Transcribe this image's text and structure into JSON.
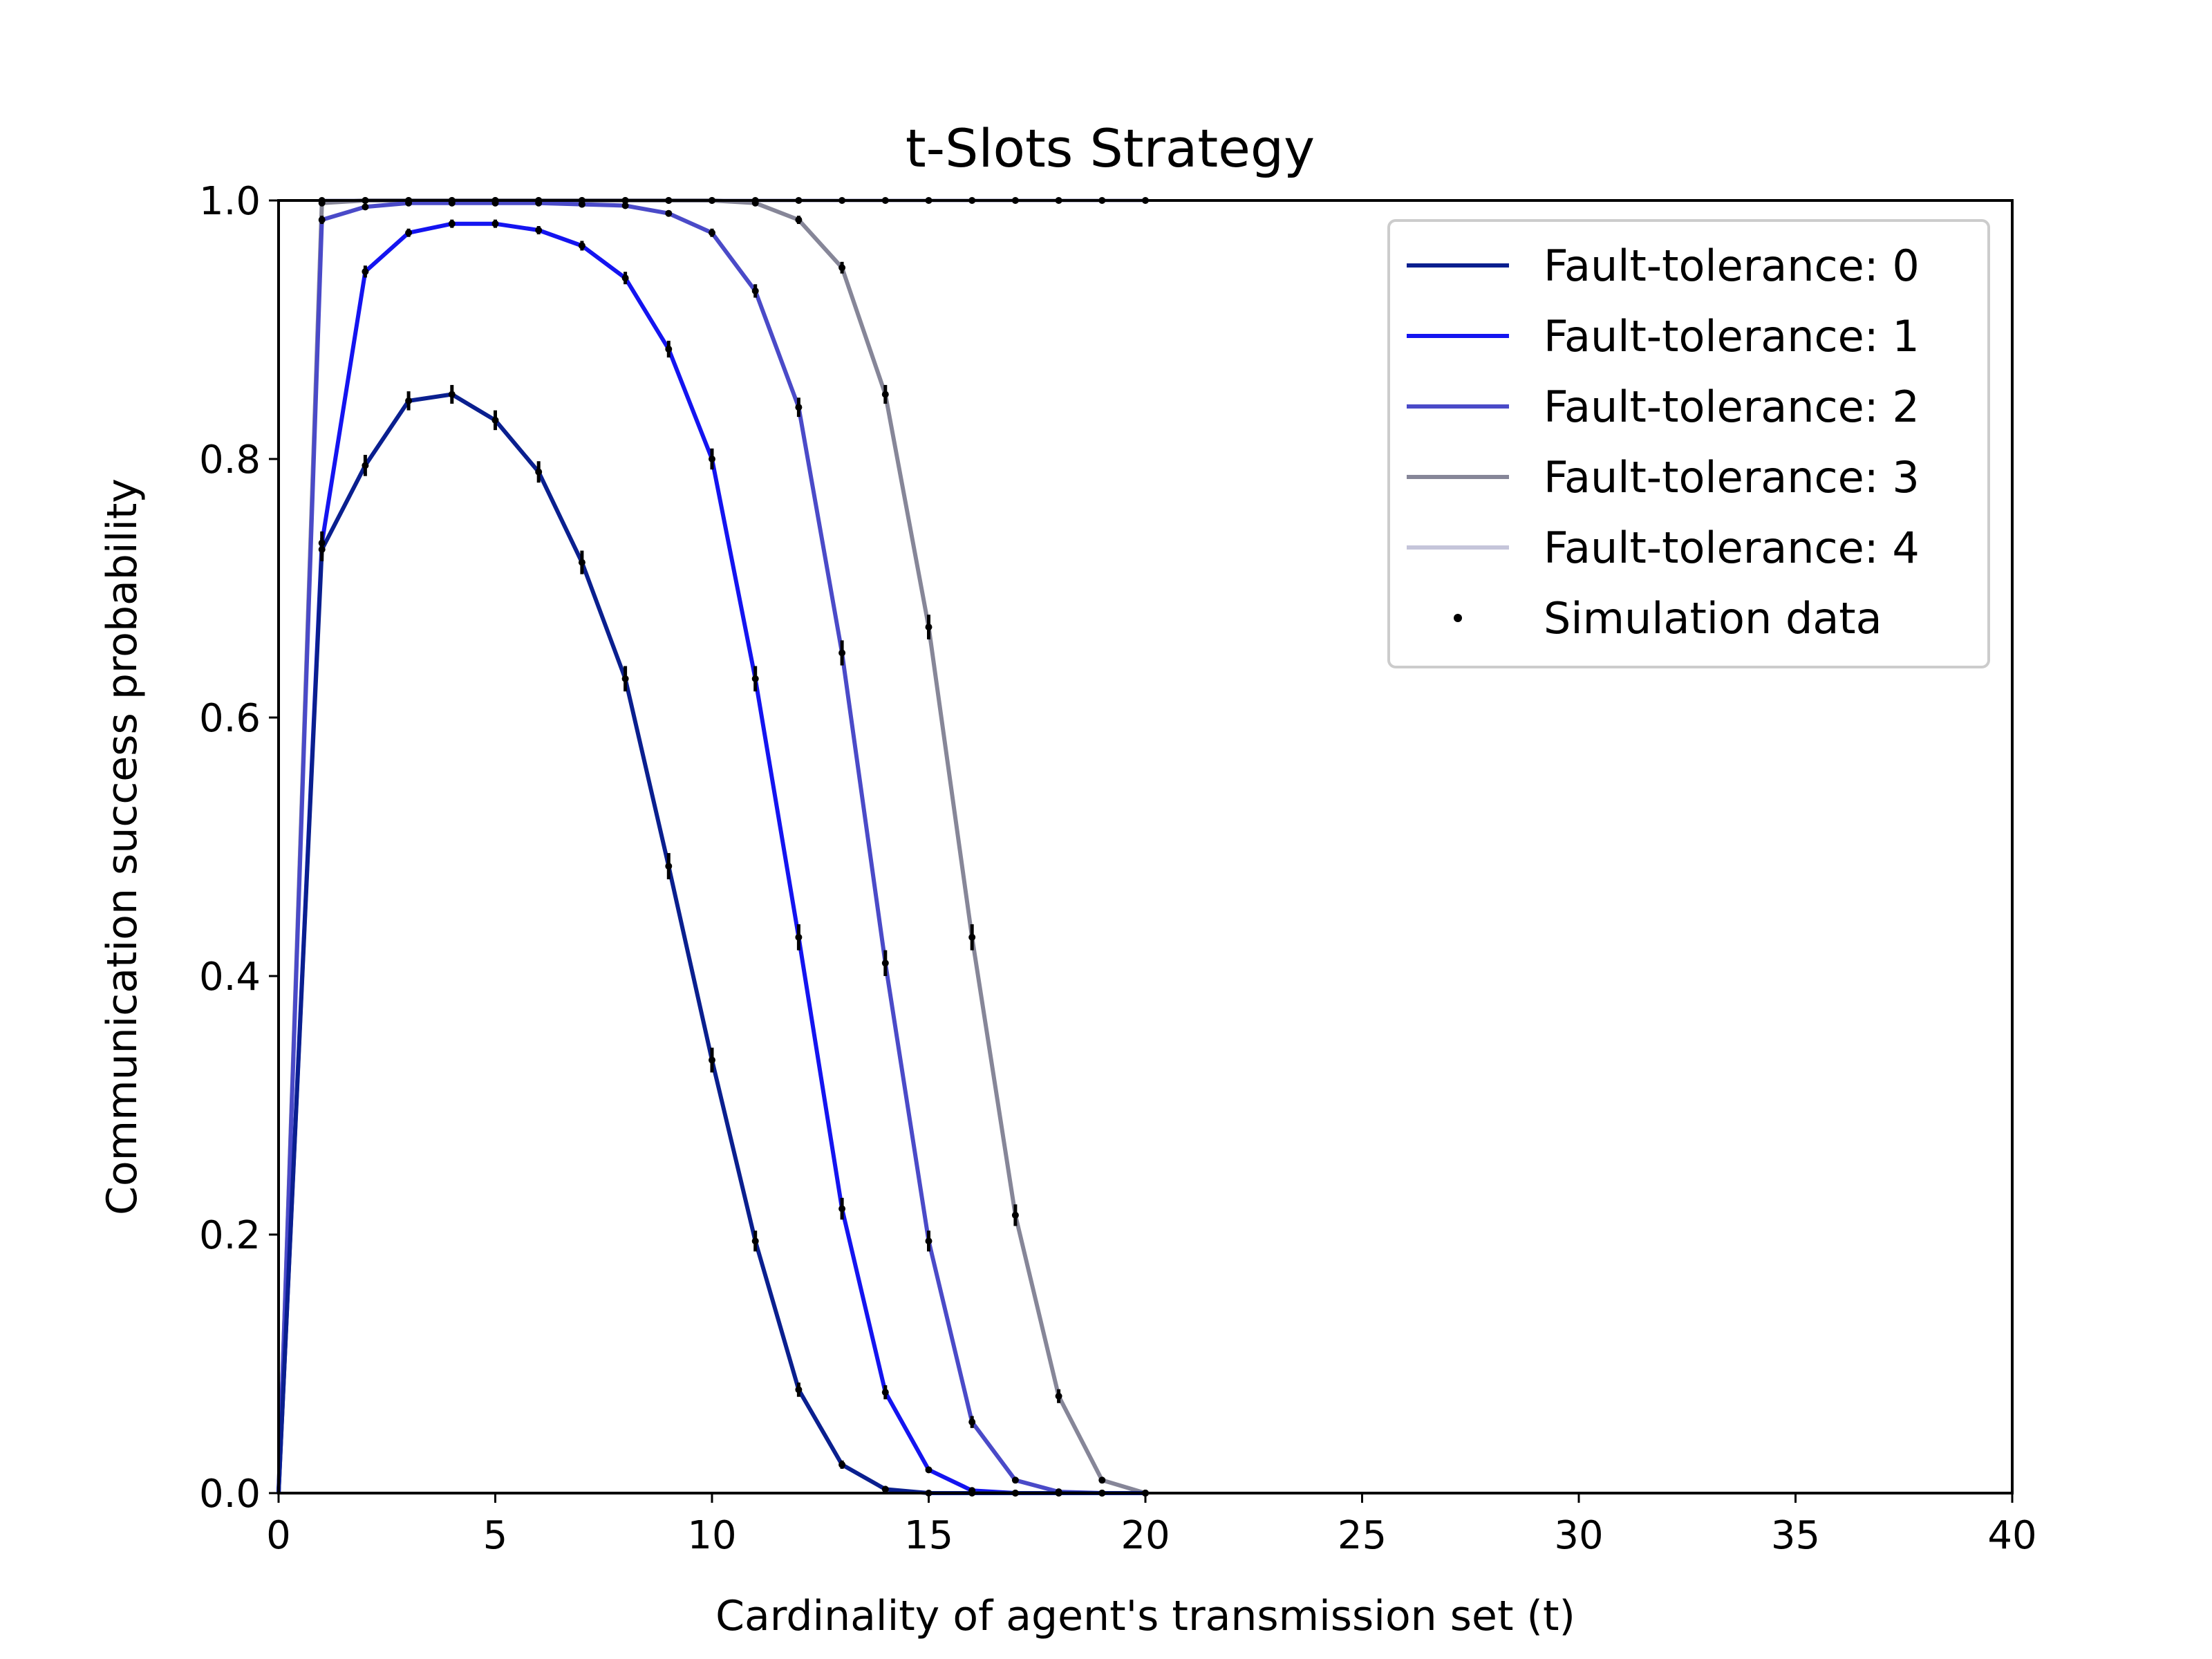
{
  "chart_data": {
    "type": "line",
    "title": "t-Slots Strategy",
    "xlabel": "Cardinality of agent's transmission set (t)",
    "ylabel": "Communication success probability",
    "xlim": [
      0,
      40
    ],
    "ylim": [
      0,
      1
    ],
    "xticks": [
      "0",
      "5",
      "10",
      "15",
      "20",
      "25",
      "30",
      "35",
      "40"
    ],
    "yticks": [
      "0.0",
      "0.2",
      "0.4",
      "0.6",
      "0.8",
      "1.0"
    ],
    "grid": false,
    "legend_position": "top-right",
    "series": [
      {
        "name": "Fault-tolerance: 0",
        "color": "#0a1f8f",
        "x": [
          0,
          1,
          2,
          3,
          4,
          5,
          6,
          7,
          8,
          9,
          10,
          11,
          12,
          13,
          14,
          15,
          16,
          17,
          18,
          19,
          20
        ],
        "values": [
          0,
          0.73,
          0.795,
          0.845,
          0.85,
          0.83,
          0.79,
          0.72,
          0.63,
          0.485,
          0.335,
          0.195,
          0.08,
          0.022,
          0.003,
          0,
          0,
          0,
          0,
          0,
          0
        ]
      },
      {
        "name": "Fault-tolerance: 1",
        "color": "#1414f0",
        "x": [
          0,
          1,
          2,
          3,
          4,
          5,
          6,
          7,
          8,
          9,
          10,
          11,
          12,
          13,
          14,
          15,
          16,
          17,
          18,
          19,
          20
        ],
        "values": [
          0,
          0.735,
          0.945,
          0.975,
          0.982,
          0.982,
          0.977,
          0.965,
          0.94,
          0.885,
          0.8,
          0.63,
          0.43,
          0.22,
          0.078,
          0.018,
          0.002,
          0,
          0,
          0,
          0
        ]
      },
      {
        "name": "Fault-tolerance: 2",
        "color": "#4a4ac8",
        "x": [
          0,
          1,
          2,
          3,
          4,
          5,
          6,
          7,
          8,
          9,
          10,
          11,
          12,
          13,
          14,
          15,
          16,
          17,
          18,
          19,
          20
        ],
        "values": [
          0,
          0.985,
          0.995,
          0.998,
          0.998,
          0.998,
          0.998,
          0.997,
          0.996,
          0.99,
          0.975,
          0.93,
          0.84,
          0.65,
          0.41,
          0.195,
          0.055,
          0.01,
          0.001,
          0,
          0
        ]
      },
      {
        "name": "Fault-tolerance: 3",
        "color": "#868698",
        "x": [
          0,
          1,
          2,
          3,
          4,
          5,
          6,
          7,
          8,
          9,
          10,
          11,
          12,
          13,
          14,
          15,
          16,
          17,
          18,
          19,
          20
        ],
        "values": [
          0,
          0.998,
          1,
          1,
          1,
          1,
          1,
          1,
          1,
          1,
          1,
          0.998,
          0.985,
          0.948,
          0.85,
          0.67,
          0.43,
          0.215,
          0.075,
          0.01,
          0
        ]
      },
      {
        "name": "Fault-tolerance: 4",
        "color": "#c5c5da",
        "x": [
          0,
          1,
          2,
          3,
          4,
          5,
          6,
          7,
          8,
          9,
          10,
          11,
          12,
          13,
          14,
          15,
          16,
          17,
          18,
          19,
          20
        ],
        "values": [
          0,
          1,
          1,
          1,
          1,
          1,
          1,
          1,
          1,
          1,
          1,
          1,
          1,
          1,
          1,
          1,
          1,
          1,
          1,
          1,
          1
        ]
      }
    ],
    "simulation": {
      "name": "Simulation data",
      "color": "#000000"
    }
  }
}
